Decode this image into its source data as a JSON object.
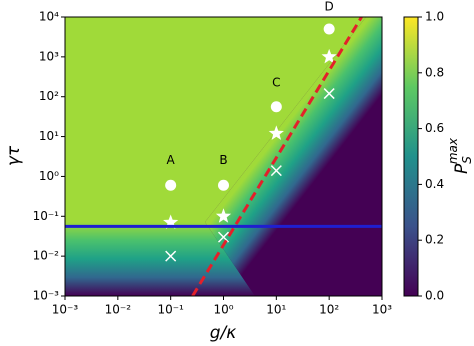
{
  "chart_data": {
    "type": "contour",
    "xlabel": "g/κ",
    "ylabel": "γτ",
    "colorbar_label": {
      "base": "P",
      "sub": "S",
      "sup": "max"
    },
    "xscale": "log",
    "yscale": "log",
    "xlim": [
      0.001,
      1000
    ],
    "ylim": [
      0.001,
      10000
    ],
    "xticks": [
      {
        "value": 0.001,
        "label": "10⁻³"
      },
      {
        "value": 0.01,
        "label": "10⁻²"
      },
      {
        "value": 0.1,
        "label": "10⁻¹"
      },
      {
        "value": 1,
        "label": "10⁰"
      },
      {
        "value": 10,
        "label": "10¹"
      },
      {
        "value": 100,
        "label": "10²"
      },
      {
        "value": 1000,
        "label": "10³"
      }
    ],
    "yticks": [
      {
        "value": 0.001,
        "label": "10⁻³"
      },
      {
        "value": 0.01,
        "label": "10⁻²"
      },
      {
        "value": 0.1,
        "label": "10⁻¹"
      },
      {
        "value": 1,
        "label": "10⁰"
      },
      {
        "value": 10,
        "label": "10¹"
      },
      {
        "value": 100,
        "label": "10²"
      },
      {
        "value": 1000,
        "label": "10³"
      },
      {
        "value": 10000,
        "label": "10⁴"
      }
    ],
    "colormap": "viridis",
    "clim": [
      0,
      1
    ],
    "cticks": [
      {
        "value": 0,
        "label": "0.0"
      },
      0.2,
      0.4,
      0.6,
      0.8,
      {
        "value": 1,
        "label": "1.0"
      }
    ],
    "series": [
      {
        "marker": "o",
        "color": "#ffffff",
        "x": [
          0.1,
          1,
          10,
          100
        ],
        "values": [
          0.6,
          0.6,
          56,
          5000
        ]
      },
      {
        "marker": "*",
        "color": "#ffffff",
        "x": [
          0.1,
          1,
          10,
          100
        ],
        "values": [
          0.07,
          0.1,
          12,
          1000
        ]
      },
      {
        "marker": "x",
        "color": "#ffffff",
        "x": [
          0.1,
          1,
          10,
          100
        ],
        "values": [
          0.01,
          0.03,
          1.4,
          120
        ]
      },
      {
        "marker": "line",
        "linestyle": "dashed",
        "color": "#e3202a",
        "x": [
          0.26,
          410
        ],
        "values": [
          0.001,
          10000
        ]
      },
      {
        "marker": "line",
        "linestyle": "solid",
        "color": "#1f1fd0",
        "x": [
          0.001,
          1000
        ],
        "values": [
          0.056,
          0.056
        ]
      }
    ],
    "annotations": [
      {
        "text": "A",
        "x": 0.1,
        "y": 2.5
      },
      {
        "text": "B",
        "x": 1,
        "y": 2.5
      },
      {
        "text": "C",
        "x": 10,
        "y": 220
      },
      {
        "text": "D",
        "x": 100,
        "y": 18000
      }
    ]
  }
}
